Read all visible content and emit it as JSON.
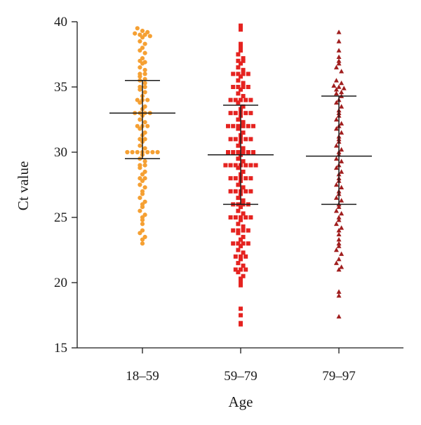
{
  "chart_data": {
    "type": "scatter",
    "xlabel": "Age",
    "ylabel": "Ct value",
    "ylim": [
      15,
      40
    ],
    "yticks": [
      15,
      20,
      25,
      30,
      35,
      40
    ],
    "categories": [
      "18–59",
      "59–79",
      "79–97"
    ],
    "grid": false,
    "legend": "none",
    "series": [
      {
        "category": "18–59",
        "marker": "circle",
        "color": "#F5A033",
        "mean": 33.0,
        "sd_low": 29.5,
        "sd_high": 35.5,
        "values": [
          39.5,
          39.3,
          39.2,
          39.1,
          39.0,
          39.0,
          38.9,
          38.8,
          38.5,
          38.3,
          38.0,
          37.8,
          37.6,
          37.2,
          37.0,
          36.9,
          36.8,
          36.5,
          36.3,
          36.0,
          36.0,
          35.8,
          35.6,
          35.5,
          35.3,
          35.0,
          35.0,
          34.8,
          34.6,
          34.3,
          34.0,
          34.0,
          34.0,
          33.8,
          33.5,
          33.3,
          33.0,
          33.0,
          33.0,
          33.0,
          32.8,
          32.5,
          32.3,
          32.0,
          32.0,
          32.0,
          31.8,
          31.5,
          31.3,
          31.0,
          31.0,
          30.8,
          30.5,
          30.3,
          30.0,
          30.0,
          30.0,
          30.0,
          30.0,
          30.0,
          30.0,
          29.8,
          29.5,
          29.3,
          29.0,
          29.0,
          28.8,
          28.5,
          28.3,
          28.0,
          28.0,
          27.8,
          27.5,
          27.3,
          27.0,
          26.8,
          26.5,
          26.2,
          26.0,
          25.8,
          25.5,
          25.2,
          25.0,
          24.8,
          24.5,
          24.0,
          23.8,
          23.5,
          23.3,
          23.0
        ]
      },
      {
        "category": "59–79",
        "marker": "square",
        "color": "#E52320",
        "mean": 29.8,
        "sd_low": 26.0,
        "sd_high": 33.6,
        "values": [
          39.7,
          39.4,
          38.3,
          38.0,
          37.8,
          37.5,
          37.2,
          37.0,
          37.0,
          36.8,
          36.5,
          36.3,
          36.0,
          36.0,
          36.0,
          36.0,
          35.8,
          35.5,
          35.3,
          35.0,
          35.0,
          35.0,
          35.0,
          34.8,
          34.5,
          34.3,
          34.0,
          34.0,
          34.0,
          34.0,
          34.0,
          33.8,
          33.5,
          33.3,
          33.0,
          33.0,
          33.0,
          33.0,
          33.0,
          32.8,
          32.5,
          32.3,
          32.0,
          32.0,
          32.0,
          32.0,
          32.0,
          32.0,
          31.8,
          31.5,
          31.3,
          31.0,
          31.0,
          31.0,
          31.0,
          31.0,
          30.8,
          30.5,
          30.3,
          30.0,
          30.0,
          30.0,
          30.0,
          30.0,
          30.0,
          29.8,
          29.5,
          29.3,
          29.0,
          29.0,
          29.0,
          29.0,
          29.0,
          29.0,
          29.0,
          28.8,
          28.5,
          28.3,
          28.0,
          28.0,
          28.0,
          28.0,
          28.0,
          27.8,
          27.5,
          27.3,
          27.0,
          27.0,
          27.0,
          27.0,
          27.0,
          26.8,
          26.5,
          26.3,
          26.0,
          26.0,
          26.0,
          26.0,
          25.8,
          25.5,
          25.3,
          25.0,
          25.0,
          25.0,
          25.0,
          25.0,
          24.8,
          24.5,
          24.3,
          24.0,
          24.0,
          24.0,
          24.0,
          23.8,
          23.5,
          23.3,
          23.0,
          23.0,
          23.0,
          23.0,
          22.8,
          22.5,
          22.3,
          22.0,
          22.0,
          22.0,
          21.8,
          21.5,
          21.3,
          21.0,
          21.0,
          21.0,
          20.8,
          20.5,
          20.3,
          20.0,
          19.8,
          18.0,
          17.5,
          16.9,
          16.8
        ]
      },
      {
        "category": "79–97",
        "marker": "triangle",
        "color": "#A01E1E",
        "mean": 29.7,
        "sd_low": 26.0,
        "sd_high": 34.3,
        "values": [
          39.2,
          38.5,
          37.8,
          37.3,
          37.0,
          36.8,
          36.5,
          36.2,
          35.5,
          35.3,
          35.1,
          35.0,
          34.9,
          34.8,
          34.6,
          34.5,
          34.3,
          34.0,
          33.8,
          33.5,
          33.2,
          33.0,
          32.8,
          32.5,
          32.2,
          32.0,
          31.8,
          31.5,
          31.2,
          31.0,
          30.8,
          30.5,
          30.2,
          30.0,
          29.8,
          29.5,
          29.3,
          29.0,
          28.8,
          28.5,
          28.3,
          28.0,
          27.8,
          27.5,
          27.3,
          27.0,
          26.8,
          26.5,
          26.3,
          26.0,
          25.8,
          25.5,
          25.3,
          25.0,
          24.8,
          24.5,
          24.2,
          24.0,
          23.7,
          23.3,
          23.0,
          22.8,
          22.5,
          22.2,
          21.8,
          21.5,
          21.2,
          21.0,
          19.3,
          19.0,
          17.4
        ]
      }
    ]
  }
}
